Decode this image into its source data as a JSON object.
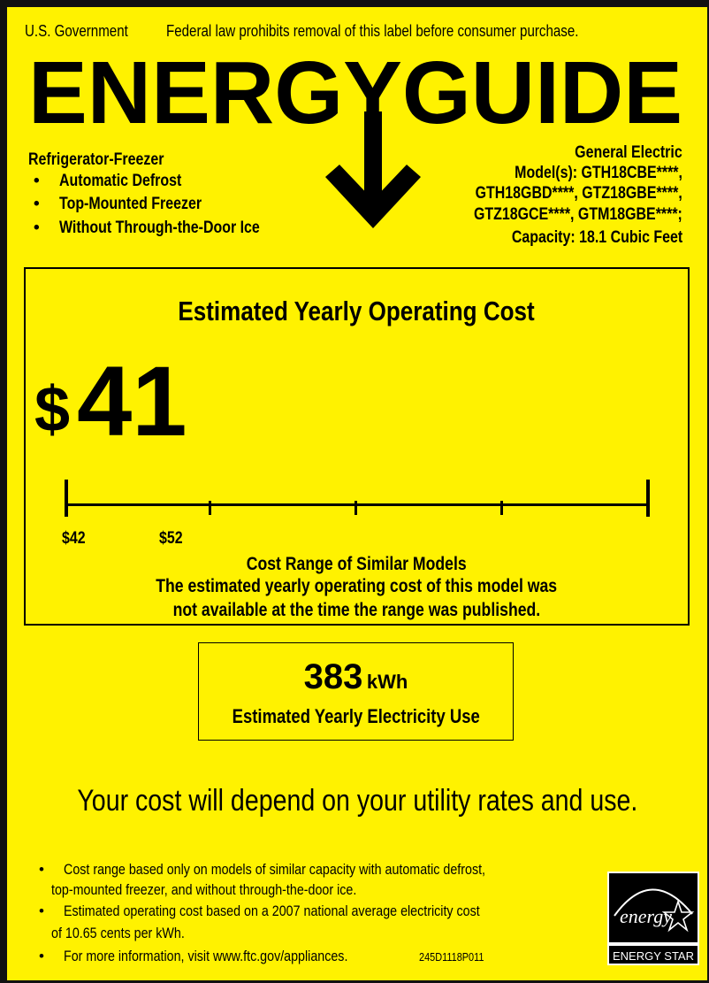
{
  "header": {
    "gov": "U.S. Government",
    "notice": "Federal law prohibits removal of this label before consumer purchase.",
    "logo_text": "ENERGYGUIDE"
  },
  "product": {
    "type": "Refrigerator-Freezer",
    "features": [
      "Automatic Defrost",
      "Top-Mounted Freezer",
      "Without Through-the-Door Ice"
    ]
  },
  "maker": {
    "brand": "General Electric",
    "models": [
      "Model(s): GTH18CBE****,",
      "GTH18GBD****, GTZ18GBE****,",
      "GTZ18GCE****, GTM18GBE****;"
    ],
    "capacity": "Capacity: 18.1 Cubic Feet"
  },
  "cost": {
    "title": "Estimated Yearly Operating Cost",
    "currency": "$",
    "value": "41",
    "range_min": "$42",
    "range_max": "$52",
    "range_title": "Cost Range of Similar Models",
    "note_line1": "The estimated yearly operating cost of this model was",
    "note_line2": "not available at the time the range was published."
  },
  "electricity": {
    "value": "383",
    "unit": "kWh",
    "label": "Estimated Yearly Electricity Use"
  },
  "depend": "Your cost will depend on your utility rates and use.",
  "footnotes": {
    "line1a": "Cost range based only on models of similar capacity with automatic defrost,",
    "line1b": "top-mounted freezer, and without through-the-door ice.",
    "line2a": "Estimated operating cost based on a 2007 national average electricity cost",
    "line2b": "of 10.65 cents per kWh.",
    "line3": "For more information, visit www.ftc.gov/appliances.",
    "code": "245D1118P011"
  },
  "energy_star": {
    "script": "energy",
    "label": "ENERGY STAR"
  },
  "colors": {
    "background": "#fff200",
    "ink": "#000000"
  }
}
